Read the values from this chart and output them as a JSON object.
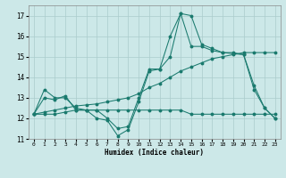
{
  "background_color": "#cce8e8",
  "grid_color": "#aacccc",
  "line_color": "#1a7a6e",
  "xlim": [
    -0.5,
    23.5
  ],
  "ylim": [
    11,
    17.5
  ],
  "xticks": [
    0,
    1,
    2,
    3,
    4,
    5,
    6,
    7,
    8,
    9,
    10,
    11,
    12,
    13,
    14,
    15,
    16,
    17,
    18,
    19,
    20,
    21,
    22,
    23
  ],
  "yticks": [
    11,
    12,
    13,
    14,
    15,
    16,
    17
  ],
  "xlabel": "Humidex (Indice chaleur)",
  "lines": [
    {
      "x": [
        0,
        1,
        2,
        3,
        4,
        5,
        6,
        7,
        8,
        9,
        10,
        11,
        12,
        13,
        14,
        15,
        16,
        17,
        18,
        19,
        20,
        21,
        22,
        23
      ],
      "y": [
        12.2,
        13.4,
        13.0,
        13.0,
        12.5,
        12.4,
        12.0,
        11.9,
        11.15,
        11.45,
        12.8,
        14.3,
        14.4,
        15.0,
        17.1,
        17.0,
        15.6,
        15.4,
        15.2,
        15.2,
        15.1,
        13.6,
        12.5,
        12.0
      ]
    },
    {
      "x": [
        0,
        1,
        2,
        3,
        4,
        5,
        6,
        7,
        8,
        9,
        10,
        11,
        12,
        13,
        14,
        15,
        16,
        17,
        18,
        19,
        20,
        21,
        22,
        23
      ],
      "y": [
        12.2,
        12.3,
        12.4,
        12.5,
        12.6,
        12.65,
        12.7,
        12.8,
        12.9,
        13.0,
        13.2,
        13.5,
        13.7,
        14.0,
        14.3,
        14.5,
        14.7,
        14.9,
        15.0,
        15.1,
        15.2,
        15.2,
        15.2,
        15.2
      ]
    },
    {
      "x": [
        0,
        1,
        2,
        3,
        4,
        5,
        6,
        7,
        8,
        9,
        10,
        11,
        12,
        13,
        14,
        15,
        16,
        17,
        18,
        19,
        20,
        21,
        22,
        23
      ],
      "y": [
        12.2,
        12.2,
        12.2,
        12.3,
        12.4,
        12.4,
        12.4,
        12.4,
        12.4,
        12.4,
        12.4,
        12.4,
        12.4,
        12.4,
        12.4,
        12.2,
        12.2,
        12.2,
        12.2,
        12.2,
        12.2,
        12.2,
        12.2,
        12.2
      ]
    },
    {
      "x": [
        0,
        1,
        2,
        3,
        4,
        5,
        6,
        7,
        8,
        9,
        10,
        11,
        12,
        13,
        14,
        15,
        16,
        17,
        18,
        19,
        20,
        21,
        22,
        23
      ],
      "y": [
        12.2,
        13.0,
        12.9,
        13.1,
        12.4,
        12.4,
        12.4,
        12.0,
        11.5,
        11.6,
        13.0,
        14.4,
        14.4,
        16.0,
        17.1,
        15.5,
        15.5,
        15.3,
        15.2,
        15.15,
        15.1,
        13.4,
        12.5,
        12.0
      ]
    }
  ]
}
